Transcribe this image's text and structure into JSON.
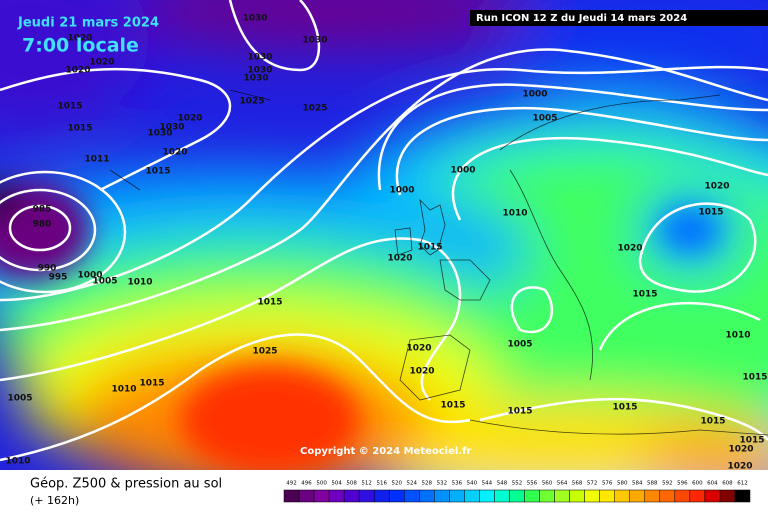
{
  "header": {
    "date": "Jeudi 21 mars 2024",
    "time": "7:00 locale",
    "run": "Run ICON 12 Z du Jeudi 14 mars 2024"
  },
  "copyright": "Copyright © 2024 Meteociel.fr",
  "footer": {
    "title": "Géop. Z500 & pression au sol",
    "subtitle": "(+ 162h)"
  },
  "legend": {
    "values": [
      492,
      496,
      500,
      504,
      508,
      512,
      516,
      520,
      524,
      528,
      532,
      536,
      540,
      544,
      548,
      552,
      556,
      560,
      564,
      568,
      572,
      576,
      580,
      584,
      588,
      592,
      596,
      600,
      604,
      608,
      612
    ],
    "colors": [
      "#4b0050",
      "#6a0080",
      "#8000a0",
      "#7000c0",
      "#5000d0",
      "#3010e0",
      "#1020f0",
      "#0030ff",
      "#0050ff",
      "#0070ff",
      "#0090ff",
      "#00b0ff",
      "#00d0ff",
      "#00f0ff",
      "#00ffd0",
      "#00ff90",
      "#30ff50",
      "#70ff30",
      "#a0ff20",
      "#c8ff00",
      "#f0ff00",
      "#ffe800",
      "#ffc800",
      "#ffa800",
      "#ff8800",
      "#ff6800",
      "#ff4800",
      "#ff2800",
      "#d80000",
      "#800000",
      "#000000"
    ]
  },
  "isobar_labels": [
    1020,
    1020,
    1020,
    1030,
    1030,
    1030,
    1030,
    1030,
    1025,
    1025,
    1015,
    1015,
    1030,
    1030,
    1020,
    1020,
    1011,
    1015,
    985,
    980,
    990,
    995,
    1000,
    1005,
    1010,
    1015,
    1025,
    1010,
    1015,
    1005,
    1010,
    1000,
    1005,
    1000,
    1000,
    1010,
    1015,
    1020,
    1020,
    1015,
    1020,
    1015,
    1010,
    1005,
    1020,
    1020,
    1015,
    1015,
    1015,
    1015,
    1015,
    1015,
    1020,
    1020
  ]
}
